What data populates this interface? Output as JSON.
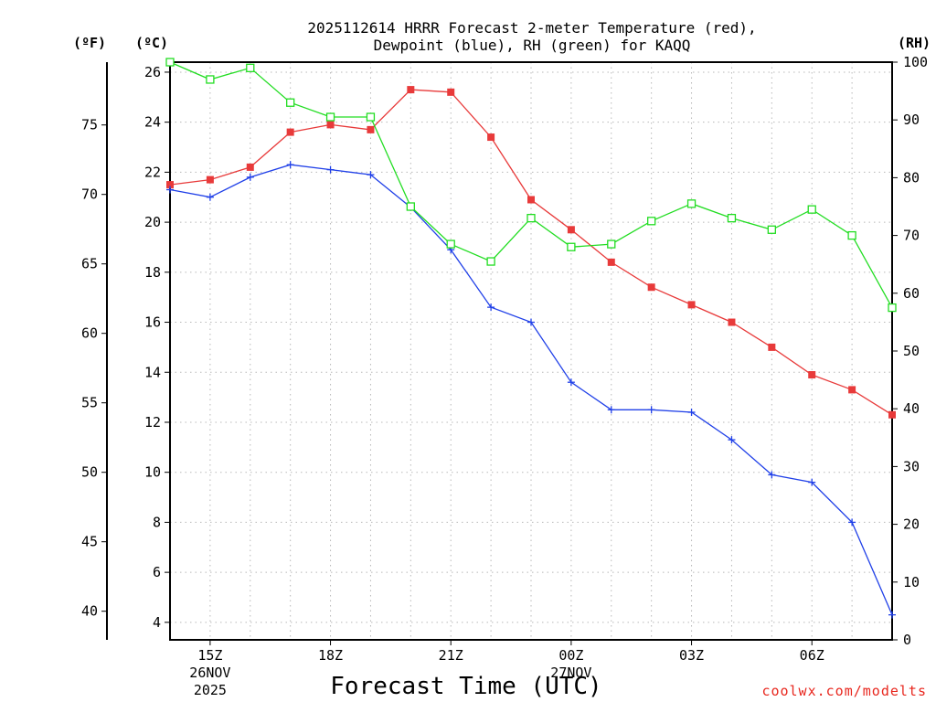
{
  "chart_data": {
    "type": "line",
    "title_line1": "2025112614 HRRR Forecast 2-meter Temperature (red),",
    "title_line2": "Dewpoint (blue), RH (green) for KAQQ",
    "xlabel": "Forecast Time (UTC)",
    "credit": "coolwx.com/modelts",
    "units": {
      "fahrenheit": "(ºF)",
      "celsius": "(ºC)",
      "rh": "(RH)"
    },
    "x_hours": [
      14,
      15,
      16,
      17,
      18,
      19,
      20,
      21,
      22,
      23,
      24,
      25,
      26,
      27,
      28,
      29,
      30,
      31,
      32
    ],
    "xlim": [
      14,
      32
    ],
    "x_ticks": [
      {
        "hour": 15,
        "label": "15Z",
        "date1": "26NOV",
        "date2": "2025"
      },
      {
        "hour": 18,
        "label": "18Z"
      },
      {
        "hour": 21,
        "label": "21Z"
      },
      {
        "hour": 24,
        "label": "00Z",
        "date1": "27NOV"
      },
      {
        "hour": 27,
        "label": "03Z"
      },
      {
        "hour": 30,
        "label": "06Z"
      }
    ],
    "ylim_celsius": [
      3.3,
      26.4
    ],
    "y_ticks_celsius": [
      4,
      6,
      8,
      10,
      12,
      14,
      16,
      18,
      20,
      22,
      24,
      26
    ],
    "y_ticks_fahrenheit": [
      40,
      45,
      50,
      55,
      60,
      65,
      70,
      75
    ],
    "y_ticks_rh": [
      0,
      10,
      20,
      30,
      40,
      50,
      60,
      70,
      80,
      90,
      100
    ],
    "ylim_rh": [
      0,
      100
    ],
    "series": [
      {
        "name": "Temperature",
        "color": "#e83a3a",
        "marker": "square-filled",
        "axis": "celsius",
        "values": [
          21.5,
          21.7,
          22.2,
          23.6,
          23.9,
          23.7,
          25.3,
          25.2,
          23.4,
          20.9,
          19.7,
          18.4,
          17.4,
          16.7,
          16.0,
          15.0,
          13.9,
          13.3,
          12.3
        ]
      },
      {
        "name": "Dewpoint",
        "color": "#2040e8",
        "marker": "plus",
        "axis": "celsius",
        "values": [
          21.3,
          21.0,
          21.8,
          22.3,
          22.1,
          21.9,
          20.6,
          18.9,
          16.6,
          16.0,
          13.6,
          12.5,
          12.5,
          12.4,
          11.3,
          9.9,
          9.6,
          8.0,
          4.3
        ]
      },
      {
        "name": "RH",
        "color": "#22dd22",
        "marker": "square-open",
        "axis": "rh",
        "values": [
          100,
          97,
          99,
          93,
          90.5,
          90.5,
          75,
          68.5,
          65.5,
          73,
          68,
          68.5,
          72.5,
          75.5,
          73,
          71,
          74.5,
          70,
          57.5
        ]
      }
    ]
  }
}
